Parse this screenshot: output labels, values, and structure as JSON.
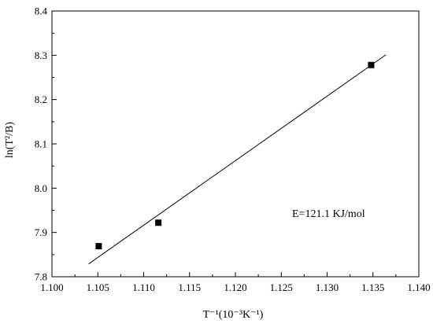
{
  "chart_data": {
    "type": "scatter",
    "xlabel": "T⁻¹(10⁻³K⁻¹)",
    "ylabel": "ln(T²/B)",
    "xlim": [
      1.1,
      1.14
    ],
    "ylim": [
      7.8,
      8.4
    ],
    "x_ticks": [
      "1.100",
      "1.105",
      "1.110",
      "1.115",
      "1.120",
      "1.125",
      "1.130",
      "1.135",
      "1.140"
    ],
    "y_ticks": [
      "7.8",
      "7.9",
      "8.0",
      "8.1",
      "8.2",
      "8.3",
      "8.4"
    ],
    "series": [
      {
        "marker": "square",
        "points": [
          {
            "x": 1.1051,
            "y": 7.869
          },
          {
            "x": 1.1116,
            "y": 7.922
          },
          {
            "x": 1.1348,
            "y": 8.278
          }
        ]
      }
    ],
    "fit_line": {
      "x": [
        1.104,
        1.1364
      ],
      "y": [
        7.829,
        8.301
      ]
    },
    "annotation": "E=121.1 KJ/mol",
    "grid": false,
    "legend": "none"
  }
}
